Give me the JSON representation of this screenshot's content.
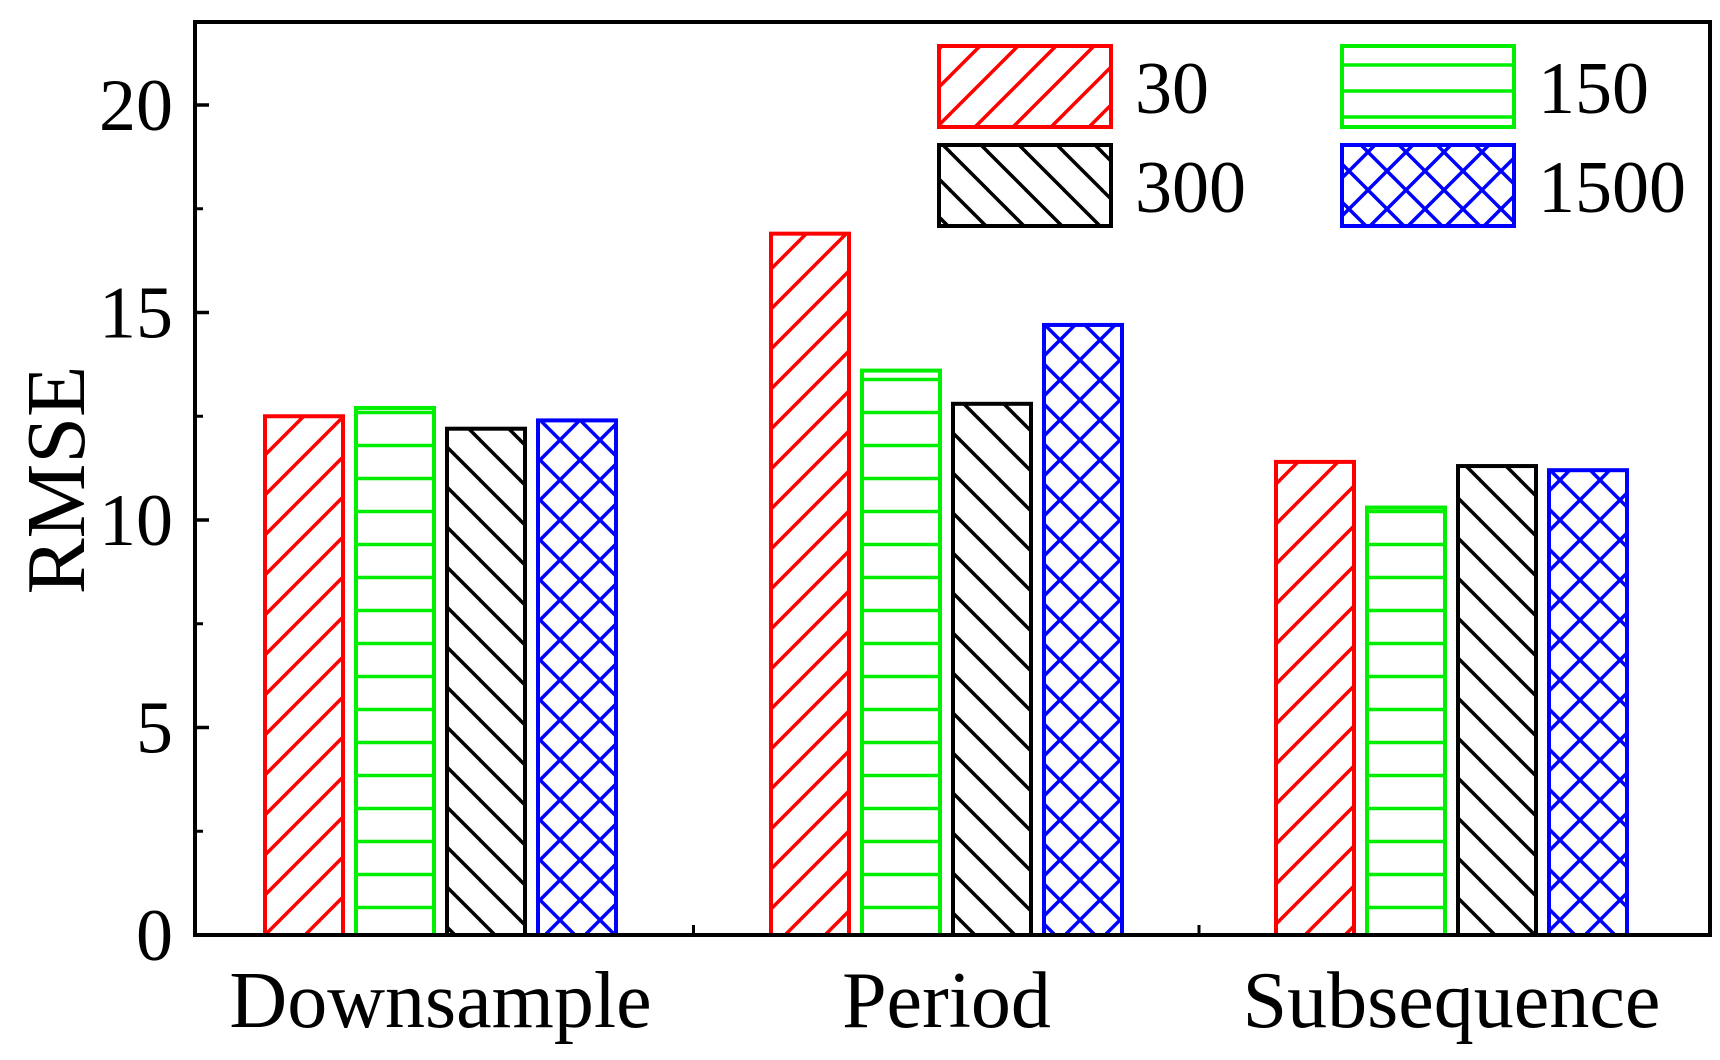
{
  "chart_data": {
    "type": "bar",
    "title": "",
    "xlabel": "",
    "ylabel": "RMSE",
    "ylim": [
      0,
      22
    ],
    "yticks": [
      0,
      5,
      10,
      15,
      20
    ],
    "ytick_labels": [
      "0",
      "5",
      "10",
      "15",
      "20"
    ],
    "categories": [
      "Downsample",
      "Period",
      "Subsequence"
    ],
    "series": [
      {
        "name": "30",
        "values": [
          12.5,
          16.9,
          11.4
        ],
        "color": "#ff0000",
        "pattern": "diagonal-up"
      },
      {
        "name": "150",
        "values": [
          12.7,
          13.6,
          10.3
        ],
        "color": "#00ee00",
        "pattern": "horizontal"
      },
      {
        "name": "300",
        "values": [
          12.2,
          12.8,
          11.3
        ],
        "color": "#000000",
        "pattern": "diagonal-down"
      },
      {
        "name": "1500",
        "values": [
          12.4,
          14.7,
          11.2
        ],
        "color": "#0000ff",
        "pattern": "crosshatch"
      }
    ],
    "legend_position": "top-right",
    "grid": false
  }
}
